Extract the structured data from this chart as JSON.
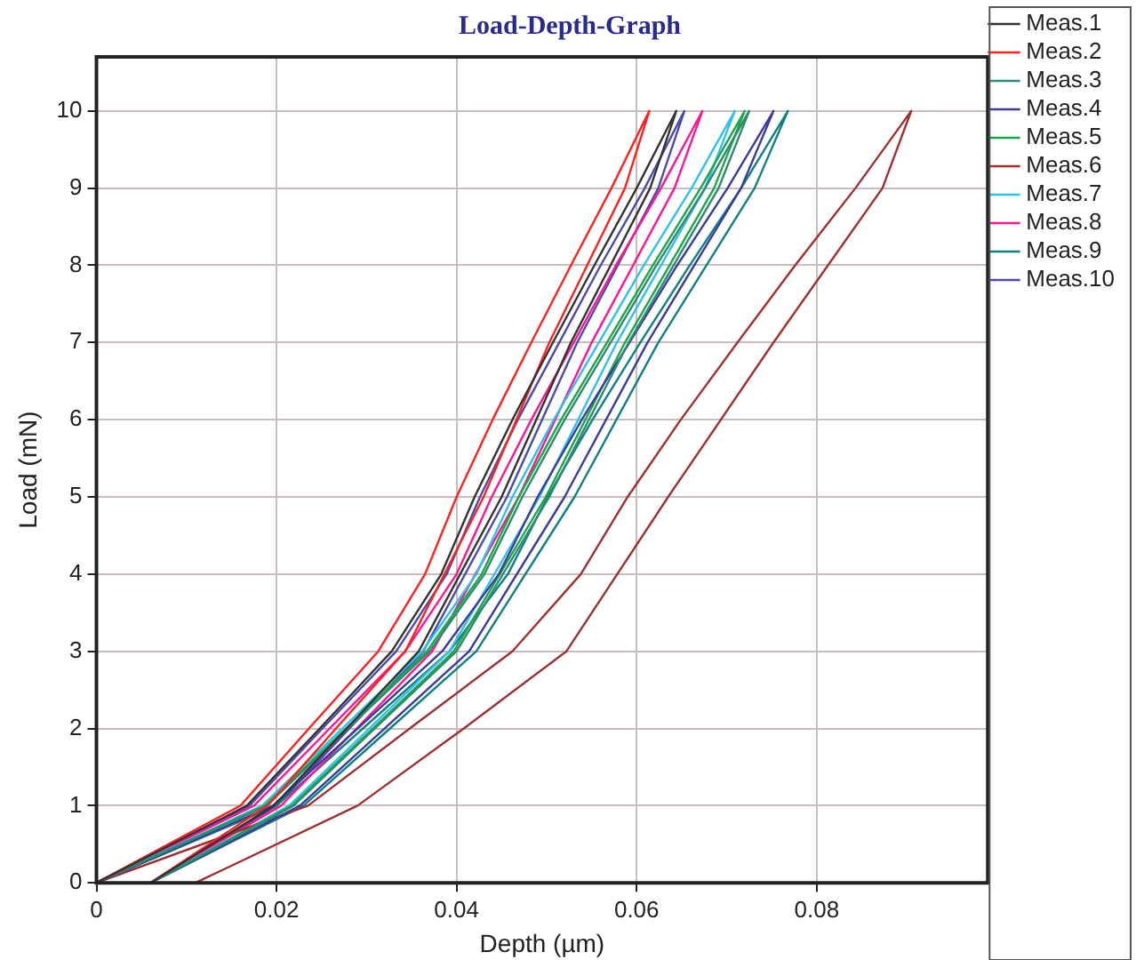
{
  "chart_data": {
    "type": "line",
    "title": "Load-Depth-Graph",
    "xlabel": "Depth (µm)",
    "ylabel": "Load (mN)",
    "xlim": [
      0,
      0.099
    ],
    "xticks": [
      0,
      0.02,
      0.04,
      0.06,
      0.08
    ],
    "ylim": [
      0,
      10.7
    ],
    "yticks": [
      0,
      1,
      2,
      3,
      4,
      5,
      6,
      7,
      8,
      9,
      10
    ],
    "grid": true,
    "legend": "top right",
    "marker": "none",
    "line_style": "solid",
    "series": [
      {
        "name": "Meas.1",
        "color": "#333333",
        "x": [
          0,
          0.0167,
          0.0248,
          0.0328,
          0.0383,
          0.042,
          0.0462,
          0.0507,
          0.0553,
          0.06,
          0.0644,
          0.0615,
          0.0527,
          0.045,
          0.0358,
          0.0278,
          0.0197,
          0.006
        ],
        "values": [
          0,
          1,
          2,
          3,
          4,
          5,
          6,
          7,
          8,
          9,
          10,
          9,
          7,
          5,
          3,
          2,
          1,
          0
        ]
      },
      {
        "name": "Meas.2",
        "color": "#ff2020",
        "x": [
          0,
          0.016,
          0.0236,
          0.0313,
          0.0365,
          0.04,
          0.044,
          0.0483,
          0.0527,
          0.0572,
          0.0614,
          0.0587,
          0.0503,
          0.043,
          0.0343,
          0.0266,
          0.019,
          0.006
        ],
        "values": [
          0,
          1,
          2,
          3,
          4,
          5,
          6,
          7,
          8,
          9,
          10,
          9,
          7,
          5,
          3,
          2,
          1,
          0
        ]
      },
      {
        "name": "Meas.3",
        "color": "#2e8b6e",
        "x": [
          0,
          0.0189,
          0.0279,
          0.037,
          0.0431,
          0.0473,
          0.052,
          0.0571,
          0.0622,
          0.0676,
          0.0725,
          0.0691,
          0.0591,
          0.0503,
          0.04,
          0.0309,
          0.0219,
          0.006
        ],
        "values": [
          0,
          1,
          2,
          3,
          4,
          5,
          6,
          7,
          8,
          9,
          10,
          9,
          7,
          5,
          3,
          2,
          1,
          0
        ]
      },
      {
        "name": "Meas.4",
        "color": "#3b3b9e",
        "x": [
          0,
          0.0196,
          0.029,
          0.0384,
          0.0447,
          0.049,
          0.0539,
          0.0592,
          0.0645,
          0.0701,
          0.0752,
          0.0716,
          0.0612,
          0.052,
          0.0414,
          0.032,
          0.0226,
          0.006
        ],
        "values": [
          0,
          1,
          2,
          3,
          4,
          5,
          6,
          7,
          8,
          9,
          10,
          9,
          7,
          5,
          3,
          2,
          1,
          0
        ]
      },
      {
        "name": "Meas.5",
        "color": "#1aa84a",
        "x": [
          0,
          0.0187,
          0.0277,
          0.0367,
          0.0428,
          0.0469,
          0.0516,
          0.0567,
          0.0618,
          0.0671,
          0.072,
          0.0686,
          0.0587,
          0.0499,
          0.0397,
          0.0307,
          0.0217,
          0.006
        ],
        "values": [
          0,
          1,
          2,
          3,
          4,
          5,
          6,
          7,
          8,
          9,
          10,
          9,
          7,
          5,
          3,
          2,
          1,
          0
        ]
      },
      {
        "name": "Meas.6",
        "color": "#a03030",
        "x": [
          0,
          0.0235,
          0.0348,
          0.0462,
          0.0538,
          0.059,
          0.0649,
          0.0712,
          0.0776,
          0.0843,
          0.0905,
          0.0873,
          0.0752,
          0.0635,
          0.0522,
          0.0408,
          0.029,
          0.011
        ],
        "values": [
          0,
          1,
          2,
          3,
          4,
          5,
          6,
          7,
          8,
          9,
          10,
          9,
          7,
          5,
          3,
          2,
          1,
          0
        ]
      },
      {
        "name": "Meas.7",
        "color": "#30c0f0",
        "x": [
          0,
          0.0184,
          0.0273,
          0.0362,
          0.0422,
          0.0462,
          0.0508,
          0.0558,
          0.0608,
          0.0661,
          0.0709,
          0.0676,
          0.0578,
          0.0492,
          0.0392,
          0.0303,
          0.0214,
          0.006
        ],
        "values": [
          0,
          1,
          2,
          3,
          4,
          5,
          6,
          7,
          8,
          9,
          10,
          9,
          7,
          5,
          3,
          2,
          1,
          0
        ]
      },
      {
        "name": "Meas.8",
        "color": "#ff1493",
        "x": [
          0,
          0.0175,
          0.0259,
          0.0343,
          0.04,
          0.0439,
          0.0483,
          0.053,
          0.0577,
          0.0627,
          0.0673,
          0.0642,
          0.055,
          0.0469,
          0.0373,
          0.0289,
          0.0205,
          0.006
        ],
        "values": [
          0,
          1,
          2,
          3,
          4,
          5,
          6,
          7,
          8,
          9,
          10,
          9,
          7,
          5,
          3,
          2,
          1,
          0
        ]
      },
      {
        "name": "Meas.9",
        "color": "#108080",
        "x": [
          0,
          0.02,
          0.0296,
          0.0392,
          0.0457,
          0.0501,
          0.0551,
          0.0604,
          0.0659,
          0.0716,
          0.0768,
          0.0731,
          0.0624,
          0.0531,
          0.0422,
          0.0326,
          0.023,
          0.006
        ],
        "values": [
          0,
          1,
          2,
          3,
          4,
          5,
          6,
          7,
          8,
          9,
          10,
          9,
          7,
          5,
          3,
          2,
          1,
          0
        ]
      },
      {
        "name": "Meas.10",
        "color": "#4a4ab0",
        "x": [
          0,
          0.017,
          0.0251,
          0.0333,
          0.0389,
          0.0426,
          0.0468,
          0.0514,
          0.056,
          0.0609,
          0.0653,
          0.0624,
          0.0534,
          0.0456,
          0.0363,
          0.0281,
          0.02,
          0.006
        ],
        "values": [
          0,
          1,
          2,
          3,
          4,
          5,
          6,
          7,
          8,
          9,
          10,
          9,
          7,
          5,
          3,
          2,
          1,
          0
        ]
      }
    ]
  }
}
